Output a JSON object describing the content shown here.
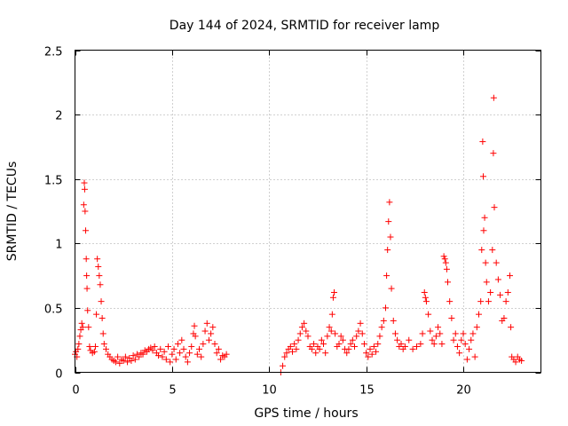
{
  "chart_data": {
    "type": "scatter",
    "title": "Day 144 of 2024, SRMTID for receiver lamp",
    "xlabel": "GPS time / hours",
    "ylabel": "SRMTID / TECUs",
    "xlim": [
      0,
      24
    ],
    "ylim": [
      0,
      2.5
    ],
    "x_ticks": [
      0,
      5,
      10,
      15,
      20
    ],
    "x_tick_labels": [
      "0",
      "5",
      "10",
      "15",
      "20"
    ],
    "y_ticks": [
      0,
      0.5,
      1,
      1.5,
      2,
      2.5
    ],
    "y_tick_labels": [
      "0",
      "0.5",
      "1",
      "1.5",
      "2",
      "2.5"
    ],
    "grid": true,
    "marker": "+",
    "series": [
      {
        "name": "SRMTID",
        "color": "#ff0000",
        "points": [
          [
            0.0,
            0.14
          ],
          [
            0.05,
            0.16
          ],
          [
            0.1,
            0.12
          ],
          [
            0.15,
            0.18
          ],
          [
            0.2,
            0.22
          ],
          [
            0.25,
            0.28
          ],
          [
            0.3,
            0.33
          ],
          [
            0.35,
            0.38
          ],
          [
            0.4,
            0.35
          ],
          [
            0.45,
            1.3
          ],
          [
            0.48,
            1.47
          ],
          [
            0.5,
            1.42
          ],
          [
            0.52,
            1.25
          ],
          [
            0.55,
            1.1
          ],
          [
            0.58,
            0.88
          ],
          [
            0.6,
            0.75
          ],
          [
            0.62,
            0.65
          ],
          [
            0.65,
            0.48
          ],
          [
            0.7,
            0.35
          ],
          [
            0.75,
            0.2
          ],
          [
            0.8,
            0.17
          ],
          [
            0.9,
            0.15
          ],
          [
            1.0,
            0.16
          ],
          [
            1.05,
            0.2
          ],
          [
            1.1,
            0.45
          ],
          [
            1.15,
            0.88
          ],
          [
            1.2,
            0.82
          ],
          [
            1.25,
            0.75
          ],
          [
            1.3,
            0.68
          ],
          [
            1.35,
            0.55
          ],
          [
            1.4,
            0.42
          ],
          [
            1.45,
            0.3
          ],
          [
            1.5,
            0.22
          ],
          [
            1.6,
            0.18
          ],
          [
            1.7,
            0.14
          ],
          [
            1.8,
            0.12
          ],
          [
            1.9,
            0.1
          ],
          [
            2.0,
            0.09
          ],
          [
            2.1,
            0.08
          ],
          [
            2.2,
            0.12
          ],
          [
            2.3,
            0.07
          ],
          [
            2.4,
            0.1
          ],
          [
            2.5,
            0.09
          ],
          [
            2.6,
            0.12
          ],
          [
            2.7,
            0.08
          ],
          [
            2.8,
            0.11
          ],
          [
            2.9,
            0.09
          ],
          [
            3.0,
            0.13
          ],
          [
            3.1,
            0.1
          ],
          [
            3.2,
            0.14
          ],
          [
            3.3,
            0.12
          ],
          [
            3.4,
            0.15
          ],
          [
            3.5,
            0.14
          ],
          [
            3.6,
            0.17
          ],
          [
            3.7,
            0.16
          ],
          [
            3.8,
            0.18
          ],
          [
            3.9,
            0.19
          ],
          [
            4.0,
            0.17
          ],
          [
            4.1,
            0.2
          ],
          [
            4.2,
            0.15
          ],
          [
            4.3,
            0.13
          ],
          [
            4.4,
            0.18
          ],
          [
            4.5,
            0.12
          ],
          [
            4.6,
            0.16
          ],
          [
            4.7,
            0.1
          ],
          [
            4.8,
            0.2
          ],
          [
            4.9,
            0.08
          ],
          [
            5.0,
            0.14
          ],
          [
            5.1,
            0.18
          ],
          [
            5.2,
            0.1
          ],
          [
            5.3,
            0.22
          ],
          [
            5.4,
            0.15
          ],
          [
            5.5,
            0.25
          ],
          [
            5.6,
            0.18
          ],
          [
            5.7,
            0.12
          ],
          [
            5.8,
            0.08
          ],
          [
            5.9,
            0.15
          ],
          [
            6.0,
            0.2
          ],
          [
            6.1,
            0.3
          ],
          [
            6.15,
            0.36
          ],
          [
            6.2,
            0.28
          ],
          [
            6.3,
            0.14
          ],
          [
            6.4,
            0.18
          ],
          [
            6.5,
            0.12
          ],
          [
            6.6,
            0.22
          ],
          [
            6.7,
            0.32
          ],
          [
            6.8,
            0.38
          ],
          [
            6.9,
            0.25
          ],
          [
            7.0,
            0.3
          ],
          [
            7.1,
            0.35
          ],
          [
            7.2,
            0.22
          ],
          [
            7.3,
            0.15
          ],
          [
            7.4,
            0.18
          ],
          [
            7.5,
            0.1
          ],
          [
            7.6,
            0.13
          ],
          [
            7.7,
            0.12
          ],
          [
            7.8,
            0.14
          ],
          [
            10.6,
            0.0
          ],
          [
            10.7,
            0.05
          ],
          [
            10.8,
            0.12
          ],
          [
            10.9,
            0.15
          ],
          [
            11.0,
            0.18
          ],
          [
            11.1,
            0.2
          ],
          [
            11.2,
            0.16
          ],
          [
            11.3,
            0.22
          ],
          [
            11.4,
            0.18
          ],
          [
            11.5,
            0.25
          ],
          [
            11.6,
            0.3
          ],
          [
            11.7,
            0.35
          ],
          [
            11.8,
            0.38
          ],
          [
            11.9,
            0.32
          ],
          [
            12.0,
            0.28
          ],
          [
            12.1,
            0.2
          ],
          [
            12.2,
            0.18
          ],
          [
            12.3,
            0.22
          ],
          [
            12.4,
            0.15
          ],
          [
            12.5,
            0.2
          ],
          [
            12.6,
            0.18
          ],
          [
            12.7,
            0.25
          ],
          [
            12.8,
            0.22
          ],
          [
            12.9,
            0.15
          ],
          [
            13.0,
            0.28
          ],
          [
            13.1,
            0.35
          ],
          [
            13.2,
            0.32
          ],
          [
            13.25,
            0.45
          ],
          [
            13.3,
            0.58
          ],
          [
            13.35,
            0.62
          ],
          [
            13.4,
            0.3
          ],
          [
            13.5,
            0.2
          ],
          [
            13.6,
            0.22
          ],
          [
            13.7,
            0.28
          ],
          [
            13.8,
            0.25
          ],
          [
            13.9,
            0.18
          ],
          [
            14.0,
            0.15
          ],
          [
            14.1,
            0.18
          ],
          [
            14.2,
            0.22
          ],
          [
            14.3,
            0.25
          ],
          [
            14.4,
            0.2
          ],
          [
            14.5,
            0.28
          ],
          [
            14.6,
            0.32
          ],
          [
            14.7,
            0.38
          ],
          [
            14.8,
            0.3
          ],
          [
            14.9,
            0.22
          ],
          [
            15.0,
            0.15
          ],
          [
            15.1,
            0.12
          ],
          [
            15.2,
            0.18
          ],
          [
            15.3,
            0.14
          ],
          [
            15.4,
            0.2
          ],
          [
            15.5,
            0.16
          ],
          [
            15.6,
            0.22
          ],
          [
            15.7,
            0.28
          ],
          [
            15.8,
            0.35
          ],
          [
            15.9,
            0.4
          ],
          [
            16.0,
            0.5
          ],
          [
            16.05,
            0.75
          ],
          [
            16.1,
            0.95
          ],
          [
            16.15,
            1.17
          ],
          [
            16.2,
            1.32
          ],
          [
            16.25,
            1.05
          ],
          [
            16.3,
            0.65
          ],
          [
            16.4,
            0.4
          ],
          [
            16.5,
            0.3
          ],
          [
            16.6,
            0.25
          ],
          [
            16.7,
            0.2
          ],
          [
            16.8,
            0.22
          ],
          [
            16.9,
            0.18
          ],
          [
            17.0,
            0.2
          ],
          [
            17.2,
            0.25
          ],
          [
            17.4,
            0.18
          ],
          [
            17.6,
            0.2
          ],
          [
            17.8,
            0.22
          ],
          [
            17.9,
            0.3
          ],
          [
            18.0,
            0.62
          ],
          [
            18.05,
            0.58
          ],
          [
            18.1,
            0.55
          ],
          [
            18.2,
            0.45
          ],
          [
            18.3,
            0.32
          ],
          [
            18.4,
            0.25
          ],
          [
            18.5,
            0.22
          ],
          [
            18.6,
            0.28
          ],
          [
            18.7,
            0.35
          ],
          [
            18.8,
            0.3
          ],
          [
            18.9,
            0.22
          ],
          [
            19.0,
            0.9
          ],
          [
            19.05,
            0.88
          ],
          [
            19.1,
            0.85
          ],
          [
            19.15,
            0.8
          ],
          [
            19.2,
            0.7
          ],
          [
            19.3,
            0.55
          ],
          [
            19.4,
            0.42
          ],
          [
            19.5,
            0.25
          ],
          [
            19.6,
            0.3
          ],
          [
            19.7,
            0.2
          ],
          [
            19.8,
            0.15
          ],
          [
            19.9,
            0.25
          ],
          [
            20.0,
            0.3
          ],
          [
            20.1,
            0.22
          ],
          [
            20.2,
            0.1
          ],
          [
            20.3,
            0.18
          ],
          [
            20.4,
            0.25
          ],
          [
            20.5,
            0.3
          ],
          [
            20.6,
            0.12
          ],
          [
            20.7,
            0.35
          ],
          [
            20.8,
            0.45
          ],
          [
            20.9,
            0.55
          ],
          [
            20.95,
            0.95
          ],
          [
            21.0,
            1.79
          ],
          [
            21.03,
            1.52
          ],
          [
            21.05,
            1.1
          ],
          [
            21.1,
            1.2
          ],
          [
            21.15,
            0.85
          ],
          [
            21.2,
            0.7
          ],
          [
            21.3,
            0.55
          ],
          [
            21.4,
            0.62
          ],
          [
            21.5,
            0.95
          ],
          [
            21.55,
            1.7
          ],
          [
            21.57,
            2.13
          ],
          [
            21.6,
            1.28
          ],
          [
            21.7,
            0.85
          ],
          [
            21.8,
            0.72
          ],
          [
            21.9,
            0.6
          ],
          [
            22.0,
            0.4
          ],
          [
            22.1,
            0.42
          ],
          [
            22.2,
            0.55
          ],
          [
            22.3,
            0.62
          ],
          [
            22.4,
            0.75
          ],
          [
            22.45,
            0.35
          ],
          [
            22.5,
            0.12
          ],
          [
            22.6,
            0.1
          ],
          [
            22.7,
            0.08
          ],
          [
            22.8,
            0.12
          ],
          [
            22.9,
            0.1
          ],
          [
            23.0,
            0.09
          ]
        ]
      }
    ]
  }
}
